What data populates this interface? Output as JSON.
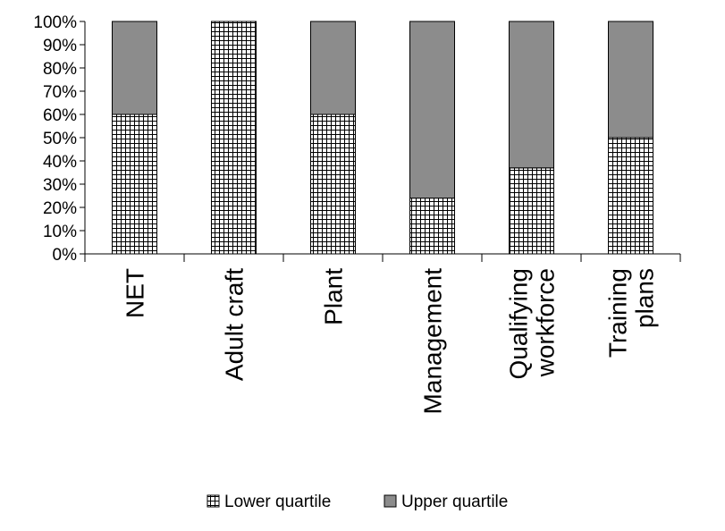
{
  "chart_data": {
    "type": "bar",
    "stacked": true,
    "title": "",
    "xlabel": "",
    "ylabel": "",
    "ylim": [
      0,
      100
    ],
    "yticks": [
      0,
      10,
      20,
      30,
      40,
      50,
      60,
      70,
      80,
      90,
      100
    ],
    "ytick_labels": [
      "0%",
      "10%",
      "20%",
      "30%",
      "40%",
      "50%",
      "60%",
      "70%",
      "80%",
      "90%",
      "100%"
    ],
    "categories": [
      [
        "NET"
      ],
      [
        "Adult craft"
      ],
      [
        "Plant"
      ],
      [
        "Management"
      ],
      [
        "Qualifying",
        "workforce"
      ],
      [
        "Training",
        "plans"
      ]
    ],
    "series": [
      {
        "name": "Lower quartile",
        "values": [
          60,
          100,
          60,
          24,
          37,
          50
        ],
        "pattern": "grid",
        "color": "#000000"
      },
      {
        "name": "Upper quartile",
        "values": [
          40,
          0,
          40,
          76,
          63,
          50
        ],
        "color": "#8c8c8c"
      }
    ],
    "legend_position": "bottom",
    "grid": false
  }
}
